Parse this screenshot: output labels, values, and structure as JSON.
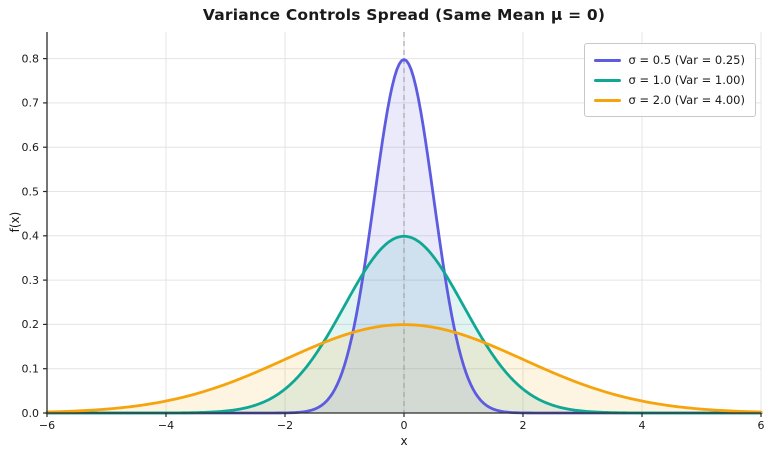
{
  "chart_data": {
    "type": "line",
    "title": "Variance Controls Spread (Same Mean μ = 0)",
    "xlabel": "x",
    "ylabel": "f(x)",
    "xlim": [
      -6,
      6
    ],
    "ylim": [
      0,
      0.86
    ],
    "grid": true,
    "legend_position": "upper right",
    "distribution": "normal pdf",
    "mean": 0,
    "xticks": {
      "values": [
        -6,
        -4,
        -2,
        0,
        2,
        4,
        6
      ],
      "labels": [
        "−6",
        "−4",
        "−2",
        "0",
        "2",
        "4",
        "6"
      ]
    },
    "yticks": {
      "values": [
        0,
        0.1,
        0.2,
        0.3,
        0.4,
        0.5,
        0.6,
        0.7,
        0.8
      ],
      "labels": [
        "0.0",
        "0.1",
        "0.2",
        "0.3",
        "0.4",
        "0.5",
        "0.6",
        "0.7",
        "0.8"
      ]
    },
    "reference_line": {
      "x": 0,
      "style": "dashed",
      "color": "#9e9e9e"
    },
    "series": [
      {
        "label": "σ = 0.5 (Var = 0.25)",
        "sigma": 0.5,
        "variance": 0.25,
        "peak_value": 0.7979,
        "color": "#5d5ce0",
        "fill_color": "rgba(93,92,224,0.13)"
      },
      {
        "label": "σ = 1.0 (Var = 1.00)",
        "sigma": 1.0,
        "variance": 1.0,
        "peak_value": 0.3989,
        "color": "#10a894",
        "fill_color": "rgba(16,168,148,0.12)"
      },
      {
        "label": "σ = 2.0 (Var = 4.00)",
        "sigma": 2.0,
        "variance": 4.0,
        "peak_value": 0.1995,
        "color": "#f6a40d",
        "fill_color": "rgba(246,164,13,0.12)"
      }
    ]
  }
}
